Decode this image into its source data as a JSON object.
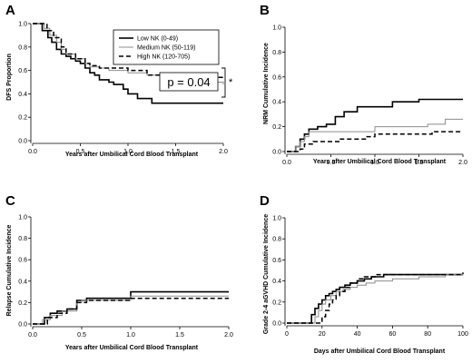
{
  "panels": [
    {
      "letter": "A",
      "ylabel": "DFS Proportion",
      "xlabel": "Years after Umbilical Cord Blood Transplant",
      "xlim": [
        0,
        2.0
      ],
      "ylim": [
        0,
        1.0
      ],
      "xticks": [
        "0.0",
        "0.5",
        "1.0",
        "1.5",
        "2.0"
      ],
      "yticks": [
        "0.0",
        "0.2",
        "0.4",
        "0.6",
        "0.8",
        "1.0"
      ],
      "pvalue": "p = 0.04",
      "significance": "*"
    },
    {
      "letter": "B",
      "ylabel": "NRM Cumulative Incidence",
      "xlabel": "Years after Umbilical Cord Blood Transplant",
      "xlim": [
        0,
        2.0
      ],
      "ylim": [
        0,
        1.0
      ],
      "xticks": [
        "0.0",
        "0.5",
        "1.0",
        "1.5",
        "2.0"
      ],
      "yticks": [
        "0.0",
        "0.2",
        "0.4",
        "0.6",
        "0.8",
        "1.0"
      ]
    },
    {
      "letter": "C",
      "ylabel": "Relapse Cumulative Incidence",
      "xlabel": "Years after Umbilical Cord Blood Transplant",
      "xlim": [
        0,
        2.0
      ],
      "ylim": [
        0,
        1.0
      ],
      "xticks": [
        "0.0",
        "0.5",
        "1.0",
        "1.5",
        "2.0"
      ],
      "yticks": [
        "0.0",
        "0.2",
        "0.4",
        "0.6",
        "0.8",
        "1.0"
      ]
    },
    {
      "letter": "D",
      "ylabel": "Grade 2-4 aGVHD Cumulative Incidence",
      "xlabel": "Days after Umbilical Cord Blood Transplant",
      "xlim": [
        0,
        100
      ],
      "ylim": [
        0,
        1.0
      ],
      "xticks": [
        "0",
        "20",
        "40",
        "60",
        "80",
        "100"
      ],
      "yticks": [
        "0.0",
        "0.2",
        "0.4",
        "0.6",
        "0.8",
        "1.0"
      ]
    }
  ],
  "legend": [
    {
      "label": "Low NK (0-49)",
      "style": "low"
    },
    {
      "label": "Medium NK (50-119)",
      "style": "medium"
    },
    {
      "label": "High NK (120-705)",
      "style": "high"
    }
  ],
  "styles": {
    "low": {
      "color": "#000000",
      "dash": "",
      "width": 1.6
    },
    "medium": {
      "color": "#8c8c8c",
      "dash": "",
      "width": 1.0
    },
    "high": {
      "color": "#000000",
      "dash": "5,3",
      "width": 1.5
    }
  },
  "chart_data": [
    {
      "type": "line",
      "step": true,
      "ylim": [
        0,
        1.0
      ],
      "xlim": [
        0,
        2.0
      ],
      "series": [
        {
          "name": "Low NK (0-49)",
          "style": "low",
          "x": [
            0,
            0.1,
            0.16,
            0.2,
            0.25,
            0.3,
            0.35,
            0.4,
            0.45,
            0.5,
            0.55,
            0.6,
            0.65,
            0.7,
            0.8,
            0.85,
            0.95,
            1.0,
            1.1,
            1.25,
            1.5,
            2.0
          ],
          "y": [
            1.0,
            0.94,
            0.88,
            0.84,
            0.78,
            0.74,
            0.72,
            0.7,
            0.68,
            0.66,
            0.62,
            0.58,
            0.56,
            0.52,
            0.5,
            0.48,
            0.44,
            0.4,
            0.36,
            0.32,
            0.32,
            0.32
          ]
        },
        {
          "name": "Medium NK (50-119)",
          "style": "medium",
          "x": [
            0,
            0.12,
            0.18,
            0.25,
            0.3,
            0.35,
            0.45,
            0.55,
            0.6,
            0.7,
            0.8,
            0.9,
            1.0,
            1.2,
            1.4,
            1.5,
            1.7,
            2.0
          ],
          "y": [
            1.0,
            0.96,
            0.9,
            0.84,
            0.78,
            0.74,
            0.7,
            0.66,
            0.63,
            0.62,
            0.6,
            0.6,
            0.58,
            0.56,
            0.54,
            0.52,
            0.5,
            0.48
          ]
        },
        {
          "name": "High NK (120-705)",
          "style": "high",
          "x": [
            0,
            0.15,
            0.22,
            0.3,
            0.35,
            0.45,
            0.55,
            0.6,
            0.7,
            0.8,
            0.9,
            1.0,
            1.2,
            1.5,
            2.0
          ],
          "y": [
            1.0,
            0.94,
            0.88,
            0.8,
            0.74,
            0.7,
            0.66,
            0.64,
            0.62,
            0.62,
            0.62,
            0.6,
            0.56,
            0.54,
            0.54
          ]
        }
      ]
    },
    {
      "type": "line",
      "step": true,
      "ylim": [
        0,
        1.0
      ],
      "xlim": [
        0,
        2.0
      ],
      "series": [
        {
          "name": "Low NK (0-49)",
          "style": "low",
          "x": [
            0,
            0.1,
            0.15,
            0.2,
            0.25,
            0.35,
            0.45,
            0.55,
            0.65,
            0.8,
            1.0,
            1.2,
            1.5,
            2.0
          ],
          "y": [
            0,
            0.04,
            0.1,
            0.14,
            0.18,
            0.2,
            0.22,
            0.28,
            0.32,
            0.36,
            0.36,
            0.4,
            0.42,
            0.42
          ]
        },
        {
          "name": "Medium NK (50-119)",
          "style": "medium",
          "x": [
            0,
            0.1,
            0.15,
            0.2,
            0.25,
            0.5,
            0.8,
            1.0,
            1.3,
            1.6,
            1.8,
            2.0
          ],
          "y": [
            0,
            0.04,
            0.08,
            0.12,
            0.16,
            0.16,
            0.16,
            0.2,
            0.2,
            0.22,
            0.26,
            0.26
          ]
        },
        {
          "name": "High NK (120-705)",
          "style": "high",
          "x": [
            0,
            0.15,
            0.2,
            0.3,
            0.45,
            0.6,
            0.9,
            1.0,
            1.2,
            1.5,
            1.65,
            2.0
          ],
          "y": [
            0,
            0.02,
            0.06,
            0.08,
            0.08,
            0.1,
            0.12,
            0.14,
            0.14,
            0.14,
            0.16,
            0.16
          ]
        }
      ]
    },
    {
      "type": "line",
      "step": true,
      "ylim": [
        0,
        1.0
      ],
      "xlim": [
        0,
        2.0
      ],
      "series": [
        {
          "name": "Low NK (0-49)",
          "style": "low",
          "x": [
            0,
            0.12,
            0.18,
            0.25,
            0.35,
            0.45,
            0.55,
            0.7,
            1.0,
            1.5,
            2.0
          ],
          "y": [
            0,
            0.06,
            0.1,
            0.12,
            0.14,
            0.22,
            0.24,
            0.24,
            0.3,
            0.3,
            0.3
          ]
        },
        {
          "name": "Medium NK (50-119)",
          "style": "medium",
          "x": [
            0,
            0.1,
            0.18,
            0.3,
            0.45,
            0.5,
            0.7,
            1.0,
            1.5,
            2.0
          ],
          "y": [
            0,
            0.04,
            0.08,
            0.12,
            0.2,
            0.22,
            0.22,
            0.26,
            0.26,
            0.26
          ]
        },
        {
          "name": "High NK (120-705)",
          "style": "high",
          "x": [
            0,
            0.15,
            0.25,
            0.35,
            0.45,
            0.55,
            0.8,
            1.0,
            1.5,
            2.0
          ],
          "y": [
            0,
            0.06,
            0.1,
            0.14,
            0.2,
            0.22,
            0.22,
            0.24,
            0.24,
            0.24
          ]
        }
      ]
    },
    {
      "type": "line",
      "step": true,
      "ylim": [
        0,
        1.0
      ],
      "xlim": [
        0,
        100
      ],
      "series": [
        {
          "name": "Low NK (0-49)",
          "style": "low",
          "x": [
            0,
            14,
            16,
            18,
            20,
            22,
            24,
            26,
            28,
            30,
            33,
            36,
            40,
            44,
            48,
            55,
            100
          ],
          "y": [
            0,
            0.08,
            0.14,
            0.18,
            0.22,
            0.26,
            0.28,
            0.3,
            0.32,
            0.34,
            0.36,
            0.38,
            0.4,
            0.42,
            0.44,
            0.46,
            0.46
          ]
        },
        {
          "name": "Medium NK (50-119)",
          "style": "medium",
          "x": [
            0,
            16,
            18,
            20,
            22,
            25,
            28,
            32,
            36,
            40,
            45,
            50,
            60,
            75,
            90,
            100
          ],
          "y": [
            0,
            0.06,
            0.12,
            0.18,
            0.22,
            0.26,
            0.3,
            0.32,
            0.34,
            0.36,
            0.38,
            0.4,
            0.42,
            0.44,
            0.46,
            0.47
          ]
        },
        {
          "name": "High NK (120-705)",
          "style": "high",
          "x": [
            0,
            20,
            22,
            24,
            26,
            28,
            30,
            33,
            36,
            40,
            44,
            50,
            60,
            80,
            100
          ],
          "y": [
            0,
            0.06,
            0.12,
            0.18,
            0.22,
            0.26,
            0.3,
            0.34,
            0.38,
            0.42,
            0.44,
            0.46,
            0.46,
            0.46,
            0.48
          ]
        }
      ]
    }
  ]
}
